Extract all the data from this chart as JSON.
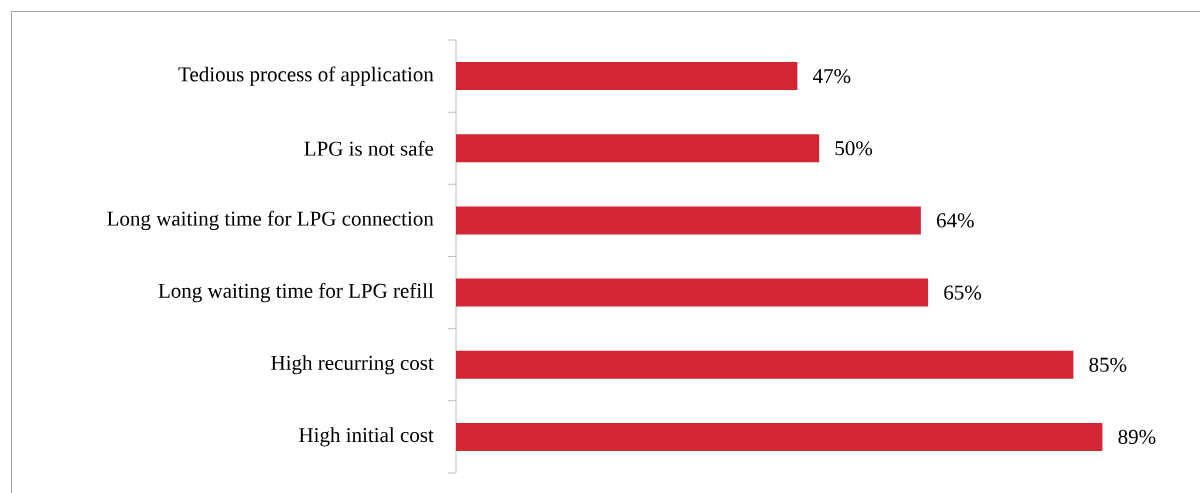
{
  "chart_data": {
    "type": "bar",
    "orientation": "horizontal",
    "categories": [
      "Tedious process of application",
      "LPG is not safe",
      "Long waiting time for LPG connection",
      "Long waiting time for LPG refill",
      "High recurring cost",
      "High initial cost"
    ],
    "values": [
      47,
      50,
      64,
      65,
      85,
      89
    ],
    "value_labels": [
      "47%",
      "50%",
      "64%",
      "65%",
      "85%",
      "89%"
    ],
    "color": "#d42535"
  }
}
